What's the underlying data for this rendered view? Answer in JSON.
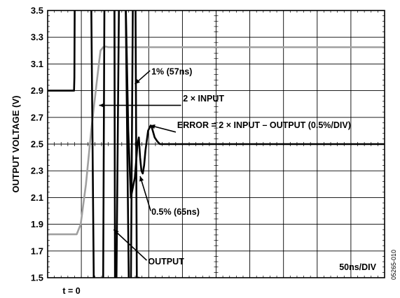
{
  "chart_data": {
    "type": "line",
    "ylabel": "OUTPUT VOLTAGE (V)",
    "ylim": [
      1.5,
      3.5
    ],
    "y_ticks": [
      "3.5",
      "3.3",
      "3.1",
      "2.9",
      "2.7",
      "2.5",
      "2.3",
      "2.1",
      "1.9",
      "1.7",
      "1.5"
    ],
    "x_unit": "ns",
    "xlim": [
      -40,
      470
    ],
    "x_divisions": 10,
    "grid": true,
    "scale_label": "50ns/DIV",
    "t0_label": "t = 0",
    "side_label": "05265-010",
    "colors": {
      "output": "#000000",
      "input": "#a0a0a0",
      "error": "#000000"
    },
    "series": [
      {
        "key": "input",
        "x": [
          -40,
          4,
          10,
          18,
          26,
          34,
          38,
          40,
          44,
          48,
          52,
          60,
          80,
          120,
          200,
          470
        ],
        "y": [
          1.825,
          1.825,
          1.9,
          2.2,
          2.6,
          2.95,
          3.12,
          3.2,
          3.225,
          3.23,
          3.225,
          3.225,
          3.225,
          3.225,
          3.225,
          3.225
        ]
      },
      {
        "key": "output",
        "x": [
          -40,
          -3,
          0,
          0.5,
          1,
          8,
          26,
          30,
          32,
          38,
          44,
          46,
          48,
          58,
          61,
          62,
          64,
          68,
          78,
          83,
          86,
          89,
          93,
          95,
          98
        ],
        "y": [
          2.9,
          2.9,
          2.9,
          3.0,
          3.6,
          3.6,
          3.6,
          1.4,
          1.4,
          1.4,
          1.4,
          3.6,
          3.6,
          3.6,
          3.6,
          1.4,
          1.4,
          3.6,
          3.6,
          1.4,
          1.4,
          3.6,
          3.6,
          1.5,
          1.5
        ]
      },
      {
        "key": "error",
        "x": [
          78,
          82,
          86,
          90,
          92,
          96,
          98,
          100,
          102,
          104,
          106,
          108,
          112,
          116,
          118,
          122,
          126,
          130,
          140,
          150,
          200,
          470
        ],
        "y": [
          3.6,
          2.6,
          2.1,
          2.2,
          2.25,
          2.5,
          2.55,
          2.4,
          2.3,
          2.28,
          2.34,
          2.45,
          2.6,
          2.64,
          2.62,
          2.55,
          2.52,
          2.5,
          2.5,
          2.5,
          2.5,
          2.5
        ]
      }
    ],
    "annotations": [
      {
        "key": "one_pct",
        "text": "1% (57ns)",
        "x": 117,
        "y": 3.02
      },
      {
        "key": "two_input",
        "text": "2 × INPUT",
        "x": 165,
        "y": 2.82
      },
      {
        "key": "error_eq",
        "text": "ERROR = 2 × INPUT – OUTPUT (0.5%/DIV)",
        "x": 156,
        "y": 2.62
      },
      {
        "key": "half_pct",
        "text": "0.5% (65ns)",
        "x": 117,
        "y": 1.97
      },
      {
        "key": "output",
        "text": "OUTPUT",
        "x": 112,
        "y": 1.6
      }
    ]
  }
}
